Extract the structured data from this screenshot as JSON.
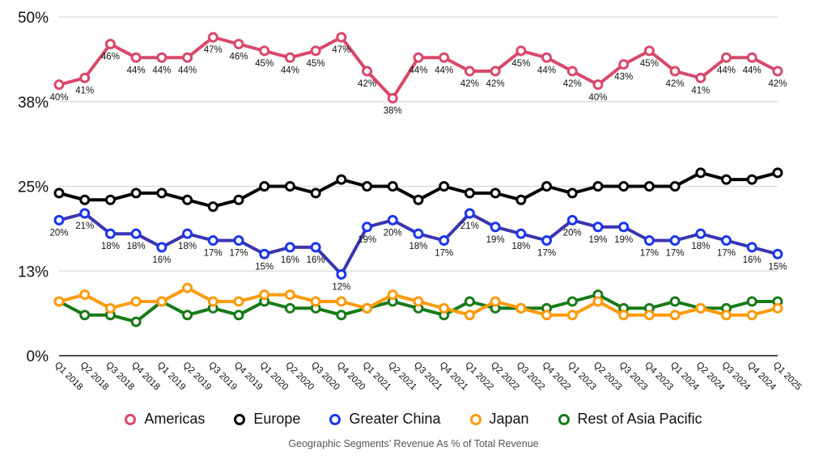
{
  "chart_data": {
    "type": "line",
    "title": "Geographic Segments’ Revenue As % of Total Revenue",
    "xlabel": "",
    "ylabel": "",
    "ylim": [
      0,
      50
    ],
    "yticks": [
      {
        "value": 0,
        "label": "0%"
      },
      {
        "value": 12.5,
        "label": "13%"
      },
      {
        "value": 25,
        "label": "25%"
      },
      {
        "value": 37.5,
        "label": "38%"
      },
      {
        "value": 50,
        "label": "50%"
      }
    ],
    "grid": true,
    "legend_position": "bottom",
    "categories": [
      "Q1 2018",
      "Q2 2018",
      "Q3 2018",
      "Q4 2018",
      "Q1 2019",
      "Q2 2019",
      "Q3 2019",
      "Q4 2019",
      "Q1 2020",
      "Q2 2020",
      "Q3 2020",
      "Q4 2020",
      "Q1 2021",
      "Q2 2021",
      "Q3 2021",
      "Q4 2021",
      "Q1 2022",
      "Q2 2022",
      "Q3 2022",
      "Q4 2022",
      "Q1 2023",
      "Q2 2023",
      "Q3 2023",
      "Q4 2023",
      "Q1 2024",
      "Q2 2024",
      "Q3 2024",
      "Q4 2024",
      "Q1 2025"
    ],
    "series": [
      {
        "name": "Americas",
        "color": "#d9486a",
        "show_labels": true,
        "label_pos": "below",
        "values": [
          40,
          41,
          46,
          44,
          44,
          44,
          47,
          46,
          45,
          44,
          45,
          47,
          42,
          38,
          44,
          44,
          42,
          42,
          45,
          44,
          42,
          40,
          43,
          45,
          42,
          41,
          44,
          44,
          42
        ]
      },
      {
        "name": "Europe",
        "color": "#000000",
        "show_labels": false,
        "values": [
          24,
          23,
          23,
          24,
          24,
          23,
          22,
          23,
          25,
          25,
          24,
          26,
          25,
          25,
          23,
          25,
          24,
          24,
          23,
          25,
          24,
          25,
          25,
          25,
          25,
          27,
          26,
          26,
          27
        ]
      },
      {
        "name": "Greater China",
        "color": "#1a35f0",
        "line_color": "#3a35b0",
        "show_labels": true,
        "label_pos": "below",
        "values": [
          20,
          21,
          18,
          18,
          16,
          18,
          17,
          17,
          15,
          16,
          16,
          12,
          19,
          20,
          18,
          17,
          21,
          19,
          18,
          17,
          20,
          19,
          19,
          17,
          17,
          18,
          17,
          16,
          15
        ]
      },
      {
        "name": "Japan",
        "color": "#ff9a0a",
        "show_labels": false,
        "values": [
          8,
          9,
          7,
          8,
          8,
          10,
          8,
          8,
          9,
          9,
          8,
          8,
          7,
          9,
          8,
          7,
          6,
          8,
          7,
          6,
          6,
          8,
          6,
          6,
          6,
          7,
          6,
          6,
          7
        ]
      },
      {
        "name": "Rest of Asia Pacific",
        "color": "#177a17",
        "show_labels": false,
        "values": [
          8,
          6,
          6,
          5,
          8,
          6,
          7,
          6,
          8,
          7,
          7,
          6,
          7,
          8,
          7,
          6,
          8,
          7,
          7,
          7,
          8,
          9,
          7,
          7,
          8,
          7,
          7,
          8,
          8
        ]
      }
    ]
  }
}
